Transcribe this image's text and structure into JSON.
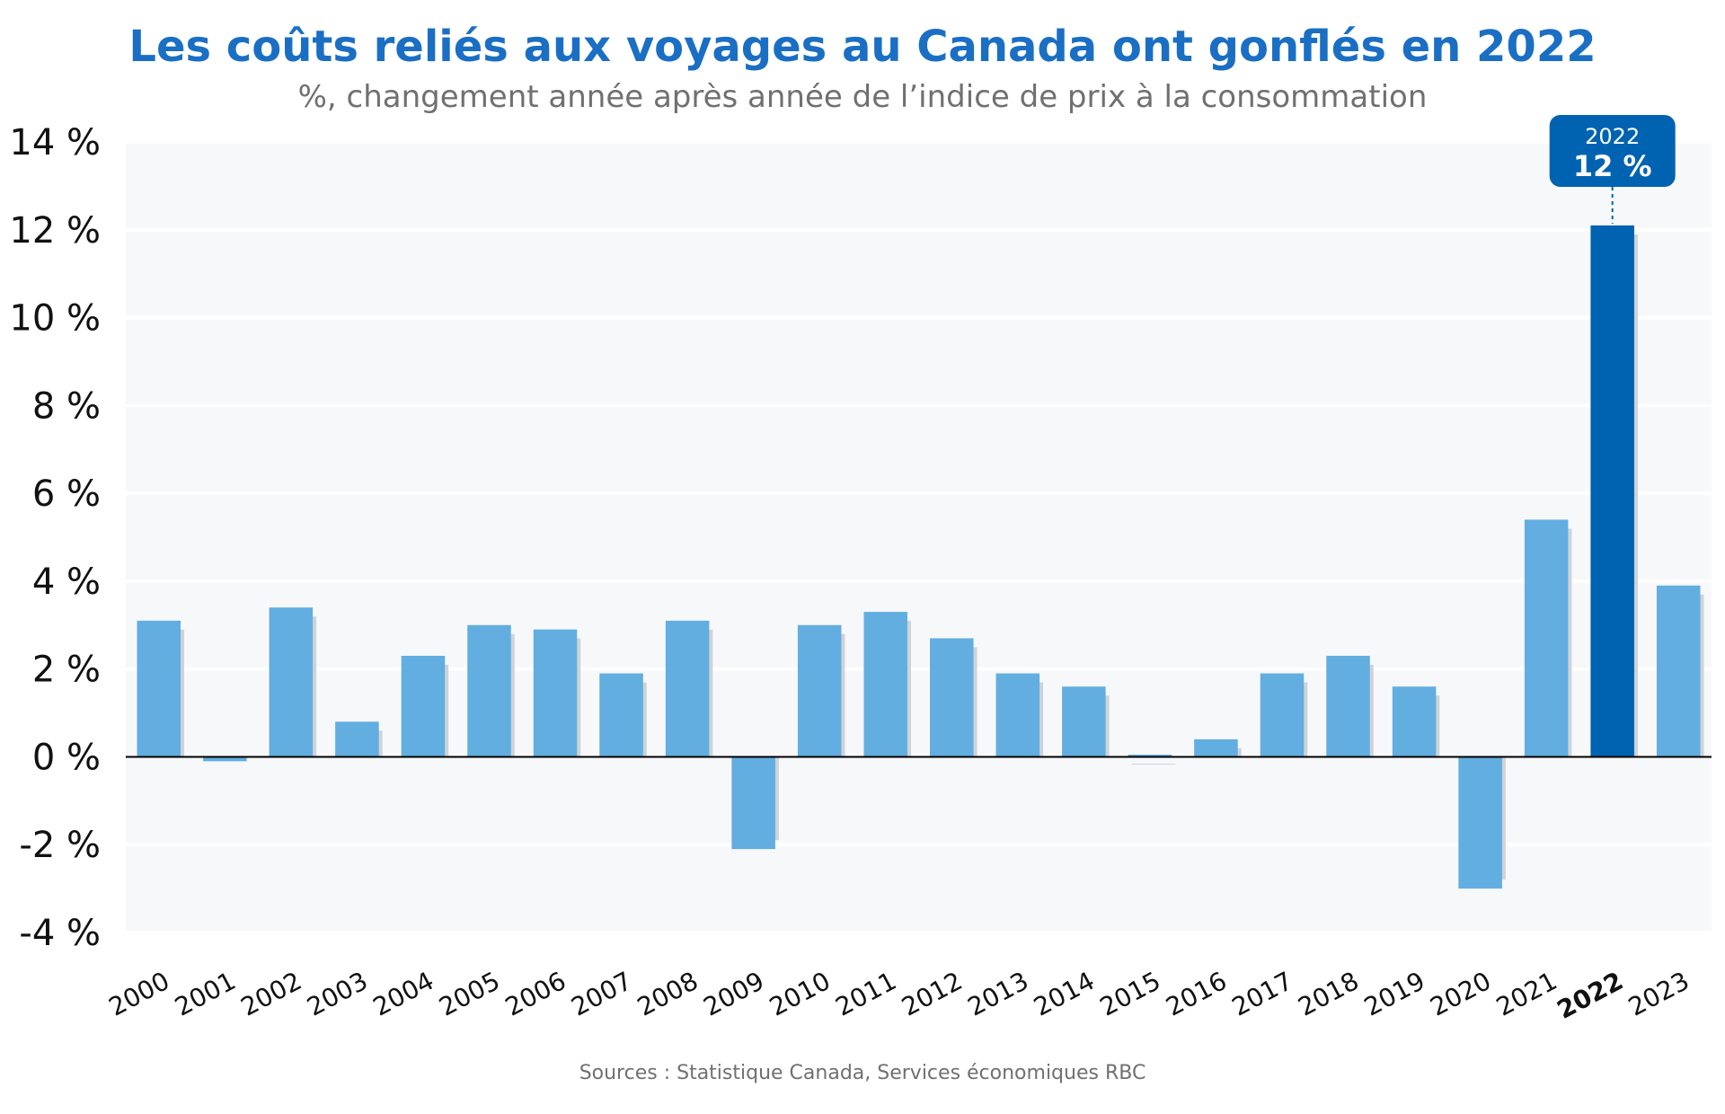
{
  "title": "Les coûts reliés aux voyages au Canada ont gonflés en 2022",
  "subtitle": "%, changement année après année de l’indice de prix à la consommation",
  "source": "Sources : Statistique Canada, Services économiques RBC",
  "colors": {
    "bar": "#62aee0",
    "highlight": "#0063b1",
    "shadow": "#cfd3d8",
    "plot_bg": "#f7f8fa",
    "title": "#1a6fc4"
  },
  "chart_data": {
    "type": "bar",
    "title": "Les coûts reliés aux voyages au Canada ont gonflés en 2022",
    "subtitle": "%, changement année après année de l’indice de prix à la consommation",
    "categories": [
      "2000",
      "2001",
      "2002",
      "2003",
      "2004",
      "2005",
      "2006",
      "2007",
      "2008",
      "2009",
      "2010",
      "2011",
      "2012",
      "2013",
      "2014",
      "2015",
      "2016",
      "2017",
      "2018",
      "2019",
      "2020",
      "2021",
      "2022",
      "2023"
    ],
    "values": [
      3.1,
      -0.1,
      3.4,
      0.8,
      2.3,
      3.0,
      2.9,
      1.9,
      3.1,
      -2.1,
      3.0,
      3.3,
      2.7,
      1.9,
      1.6,
      0.05,
      0.4,
      1.9,
      2.3,
      1.6,
      -3.0,
      5.4,
      12.1,
      3.9
    ],
    "ylim": [
      -4,
      14
    ],
    "yticks": [
      "-4 %",
      "-2 %",
      "0 %",
      "2 %",
      "4 %",
      "6 %",
      "8 %",
      "10 %",
      "12 %",
      "14 %"
    ],
    "ytick_values": [
      -4,
      -2,
      0,
      2,
      4,
      6,
      8,
      10,
      12,
      14
    ],
    "highlight_category": "2022",
    "annotation": {
      "category": "2022",
      "year_label": "2022",
      "value_label": "12 %"
    },
    "grid": true,
    "xlabel": "",
    "ylabel": ""
  }
}
